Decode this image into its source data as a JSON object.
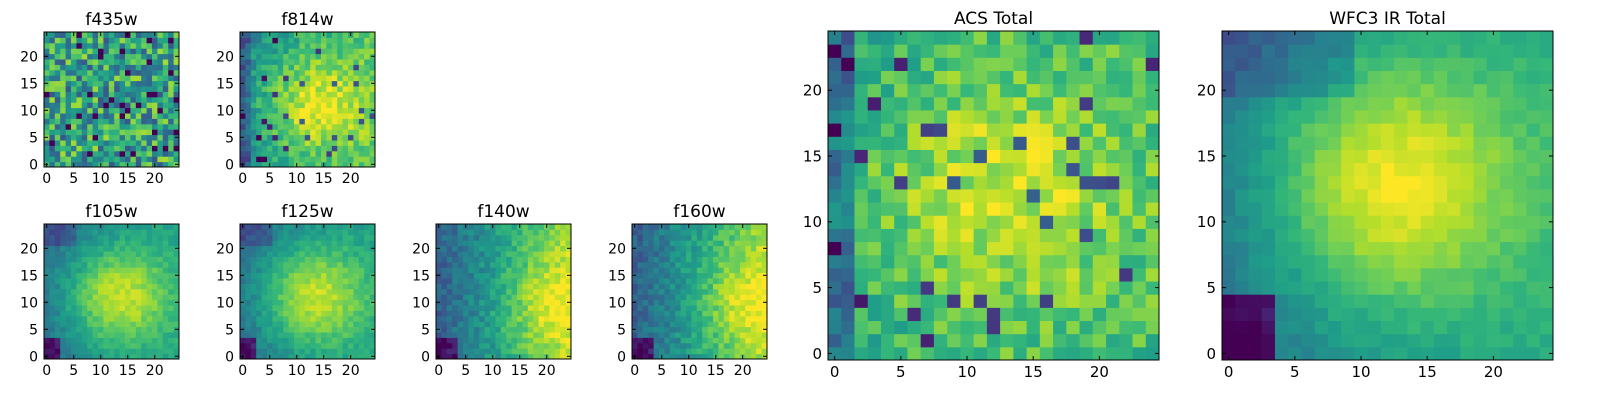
{
  "figure": {
    "background": "#ffffff"
  },
  "colormap": {
    "name": "viridis",
    "stops": [
      "#440154",
      "#482878",
      "#3e4989",
      "#31688e",
      "#26828e",
      "#1f9e89",
      "#35b779",
      "#6ece58",
      "#b5de2b",
      "#fde725"
    ]
  },
  "chart_data": [
    {
      "type": "heatmap",
      "title": "f435w",
      "grid_size": 25,
      "xticks": [
        0,
        5,
        10,
        15,
        20
      ],
      "yticks": [
        0,
        5,
        10,
        15,
        20
      ],
      "xlim": [
        -0.5,
        24.5
      ],
      "ylim": [
        -0.5,
        24.5
      ],
      "pattern": "noise"
    },
    {
      "type": "heatmap",
      "title": "f814w",
      "grid_size": 25,
      "xticks": [
        0,
        5,
        10,
        15,
        20
      ],
      "yticks": [
        0,
        5,
        10,
        15,
        20
      ],
      "xlim": [
        -0.5,
        24.5
      ],
      "ylim": [
        -0.5,
        24.5
      ],
      "pattern": "blob-right"
    },
    {
      "type": "heatmap",
      "title": "f105w",
      "grid_size": 25,
      "xticks": [
        0,
        5,
        10,
        15,
        20
      ],
      "yticks": [
        0,
        5,
        10,
        15,
        20
      ],
      "xlim": [
        -0.5,
        24.5
      ],
      "ylim": [
        -0.5,
        24.5
      ],
      "pattern": "smooth-blob"
    },
    {
      "type": "heatmap",
      "title": "f125w",
      "grid_size": 25,
      "xticks": [
        0,
        5,
        10,
        15,
        20
      ],
      "yticks": [
        0,
        5,
        10,
        15,
        20
      ],
      "xlim": [
        -0.5,
        24.5
      ],
      "ylim": [
        -0.5,
        24.5
      ],
      "pattern": "smooth-blob"
    },
    {
      "type": "heatmap",
      "title": "f140w",
      "grid_size": 25,
      "xticks": [
        0,
        5,
        10,
        15,
        20
      ],
      "yticks": [
        0,
        5,
        10,
        15,
        20
      ],
      "xlim": [
        -0.5,
        24.5
      ],
      "ylim": [
        -0.5,
        24.5
      ],
      "pattern": "gradient-right"
    },
    {
      "type": "heatmap",
      "title": "f160w",
      "grid_size": 25,
      "xticks": [
        0,
        5,
        10,
        15,
        20
      ],
      "yticks": [
        0,
        5,
        10,
        15,
        20
      ],
      "xlim": [
        -0.5,
        24.5
      ],
      "ylim": [
        -0.5,
        24.5
      ],
      "pattern": "gradient-right"
    },
    {
      "type": "heatmap",
      "title": "ACS Total",
      "grid_size": 25,
      "xticks": [
        0,
        5,
        10,
        15,
        20
      ],
      "yticks": [
        0,
        5,
        10,
        15,
        20
      ],
      "xlim": [
        -0.5,
        24.5
      ],
      "ylim": [
        -0.5,
        24.5
      ],
      "pattern": "blob-noisy"
    },
    {
      "type": "heatmap",
      "title": "WFC3 IR Total",
      "grid_size": 25,
      "xticks": [
        0,
        5,
        10,
        15,
        20
      ],
      "yticks": [
        0,
        5,
        10,
        15,
        20
      ],
      "xlim": [
        -0.5,
        24.5
      ],
      "ylim": [
        -0.5,
        24.5
      ],
      "pattern": "smooth-blob-strong"
    }
  ]
}
